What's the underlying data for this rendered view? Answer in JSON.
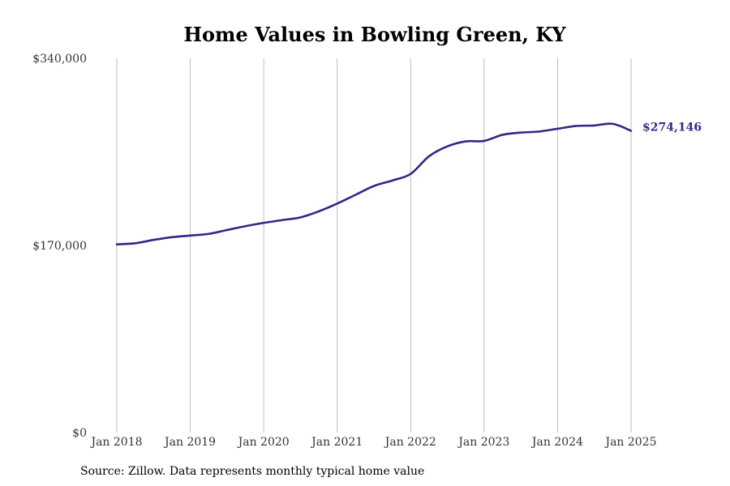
{
  "chart_data": {
    "type": "line",
    "title": "Home Values in Bowling Green, KY",
    "xlabel": "",
    "ylabel": "",
    "ylim": [
      0,
      340000
    ],
    "y_ticks": [
      {
        "value": 0,
        "label": "$0"
      },
      {
        "value": 170000,
        "label": "$170,000"
      },
      {
        "value": 340000,
        "label": "$340,000"
      }
    ],
    "x_ticks": [
      "Jan 2018",
      "Jan 2019",
      "Jan 2020",
      "Jan 2021",
      "Jan 2022",
      "Jan 2023",
      "Jan 2024",
      "Jan 2025"
    ],
    "vertical_grid": true,
    "line_color": "#2e2a86",
    "series": [
      {
        "x": [
          "2018-01",
          "2018-04",
          "2018-07",
          "2018-10",
          "2019-01",
          "2019-04",
          "2019-07",
          "2019-10",
          "2020-01",
          "2020-04",
          "2020-07",
          "2020-10",
          "2021-01",
          "2021-04",
          "2021-07",
          "2021-10",
          "2022-01",
          "2022-04",
          "2022-07",
          "2022-10",
          "2023-01",
          "2023-04",
          "2023-07",
          "2023-10",
          "2024-01",
          "2024-04",
          "2024-07",
          "2024-10",
          "2025-01"
        ],
        "values": [
          171000,
          172000,
          175000,
          177500,
          179000,
          180500,
          184000,
          187500,
          190500,
          193000,
          195500,
          201000,
          208000,
          216000,
          224000,
          229000,
          235000,
          251000,
          260000,
          264500,
          265000,
          270500,
          272500,
          273500,
          276000,
          278500,
          279000,
          280500,
          274146
        ]
      }
    ],
    "end_label": "$274,146"
  },
  "source_note": "Source: Zillow. Data represents monthly typical home value"
}
